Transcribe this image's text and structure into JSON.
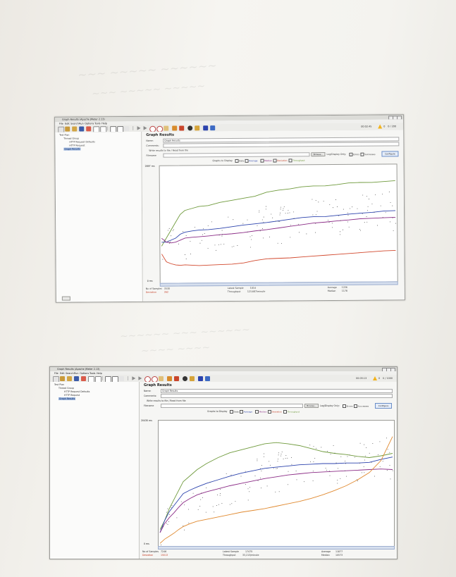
{
  "window_1": {
    "title": "Graph Results (Apache JMeter 2.13)",
    "menu": [
      "File",
      "Edit",
      "Search",
      "Run",
      "Options",
      "Tools",
      "Help"
    ],
    "clock": "00:02:45",
    "warning_count": "0",
    "active_count": "0 / 200",
    "tree": {
      "items": [
        "Test Plan",
        "Thread Group",
        "HTTP Request Defaults",
        "HTTP Request",
        "Graph Results"
      ],
      "selected": "Graph Results"
    },
    "panel": {
      "title": "Graph Results",
      "name_label": "Name:",
      "name_value": "Graph Results",
      "comments_label": "Comments:",
      "write_label": "Write results to file / Read from file",
      "filename_label": "Filename",
      "browse": "Browse...",
      "log_only": "Log/Display Only:",
      "errors": "Errors",
      "successes": "Successes",
      "configure": "Configure",
      "graphs_label": "Graphs to Display",
      "checks": [
        "Data",
        "Average",
        "Median",
        "Deviation",
        "Throughput"
      ]
    },
    "y_max": "2897 ms",
    "y_min": "0 ms",
    "stats": {
      "samples_label": "No of Samples",
      "samples": "3530",
      "deviation_label": "Deviation",
      "deviation": "262",
      "latest_label": "Latest Sample",
      "latest": "1014",
      "throughput_label": "Throughput",
      "throughput": "123,687/minute",
      "average_label": "Average",
      "average": "1226",
      "median_label": "Median",
      "median": "1178"
    },
    "chart_data": {
      "type": "line",
      "ylim": [
        0,
        2897
      ],
      "x": [
        0,
        2,
        4,
        6,
        8,
        10,
        13,
        16,
        20,
        25,
        30,
        35,
        40,
        45,
        50,
        55,
        60,
        65,
        70,
        75,
        80,
        85,
        90,
        95,
        100
      ],
      "series": [
        {
          "name": "Throughput",
          "color": "#6f9a3c",
          "values": [
            900,
            1100,
            1300,
            1500,
            1700,
            1800,
            1850,
            1900,
            1920,
            2000,
            2050,
            2100,
            2150,
            2250,
            2300,
            2330,
            2380,
            2400,
            2400,
            2430,
            2470,
            2480,
            2480,
            2500,
            2520
          ]
        },
        {
          "name": "Average",
          "color": "#2c43ad",
          "values": [
            1000,
            1000,
            1050,
            1100,
            1200,
            1250,
            1280,
            1300,
            1310,
            1340,
            1380,
            1420,
            1450,
            1480,
            1520,
            1560,
            1600,
            1620,
            1620,
            1650,
            1680,
            1700,
            1720,
            1750,
            1760
          ]
        },
        {
          "name": "Median",
          "color": "#8b2c86",
          "values": [
            1100,
            1000,
            980,
            1000,
            1050,
            1100,
            1120,
            1130,
            1150,
            1180,
            1200,
            1230,
            1270,
            1300,
            1340,
            1380,
            1420,
            1460,
            1480,
            1510,
            1530,
            1560,
            1570,
            1580,
            1590
          ]
        },
        {
          "name": "Deviation",
          "color": "#d2492e",
          "values": [
            700,
            500,
            450,
            420,
            410,
            420,
            410,
            400,
            410,
            420,
            430,
            460,
            520,
            560,
            570,
            580,
            600,
            620,
            640,
            660,
            680,
            700,
            720,
            740,
            750
          ]
        }
      ]
    }
  },
  "window_2": {
    "title": "Graph Results (Apache JMeter 2.13)",
    "menu": [
      "File",
      "Edit",
      "Search",
      "Run",
      "Options",
      "Tools",
      "Help"
    ],
    "clock": "00:05:13",
    "warning_count": "0",
    "active_count": "0 / 1000",
    "tree": {
      "items": [
        "Test Plan",
        "Thread Group",
        "HTTP Request Defaults",
        "HTTP Request",
        "Graph Results"
      ],
      "selected": "Graph Results"
    },
    "panel": {
      "title": "Graph Results",
      "name_label": "Name:",
      "name_value": "Graph Results",
      "comments_label": "Comments:",
      "write_label": "Write results to file / Read from file",
      "filename_label": "Filename",
      "browse": "Browse...",
      "log_only": "Log/Display Only:",
      "errors": "Errors",
      "successes": "Successes",
      "configure": "Configure",
      "graphs_label": "Graphs to Display",
      "checks": [
        "Data",
        "Average",
        "Median",
        "Deviation",
        "Throughput"
      ]
    },
    "y_max": "20430 ms",
    "y_min": "0 ms",
    "stats": {
      "samples_label": "No of Samples",
      "samples": "7246",
      "deviation_label": "Deviation",
      "deviation": "15013",
      "latest_label": "Latest Sample",
      "latest": "17475",
      "throughput_label": "Throughput",
      "throughput": "33,213/minute",
      "average_label": "Average",
      "average": "11877",
      "median_label": "Median",
      "median": "10573"
    },
    "chart_data": {
      "type": "line",
      "ylim": [
        0,
        20430
      ],
      "x": [
        0,
        2,
        4,
        6,
        8,
        10,
        13,
        16,
        20,
        25,
        30,
        35,
        40,
        45,
        50,
        55,
        60,
        65,
        70,
        75,
        80,
        85,
        90,
        95,
        100
      ],
      "series": [
        {
          "name": "Throughput",
          "color": "#6f9a3c",
          "values": [
            2500,
            4000,
            6000,
            7500,
            9000,
            10500,
            11500,
            12500,
            13500,
            14500,
            15300,
            15800,
            16300,
            16800,
            17000,
            16800,
            16500,
            16000,
            15500,
            15200,
            15000,
            14700,
            14500,
            14800,
            15200
          ]
        },
        {
          "name": "Average",
          "color": "#2c43ad",
          "values": [
            2000,
            4000,
            5500,
            6500,
            7500,
            8500,
            9100,
            9600,
            10200,
            10800,
            11400,
            11900,
            12300,
            12700,
            12900,
            13100,
            13300,
            13400,
            13500,
            13500,
            13600,
            13600,
            13700,
            14200,
            14600
          ]
        },
        {
          "name": "Median",
          "color": "#8b2c86",
          "values": [
            2000,
            3500,
            4500,
            5300,
            6200,
            7000,
            7700,
            8300,
            8800,
            9300,
            9800,
            10200,
            10600,
            11000,
            11300,
            11600,
            11800,
            12000,
            12100,
            12200,
            12300,
            12400,
            12500,
            12600,
            12500
          ]
        },
        {
          "name": "Deviation",
          "color": "#e0892f",
          "values": [
            200,
            900,
            1400,
            1900,
            2500,
            3000,
            3500,
            3900,
            4200,
            4600,
            5000,
            5400,
            5700,
            6000,
            6400,
            6800,
            7200,
            7700,
            8300,
            9000,
            9800,
            10800,
            12000,
            14000,
            18000
          ]
        }
      ]
    }
  }
}
